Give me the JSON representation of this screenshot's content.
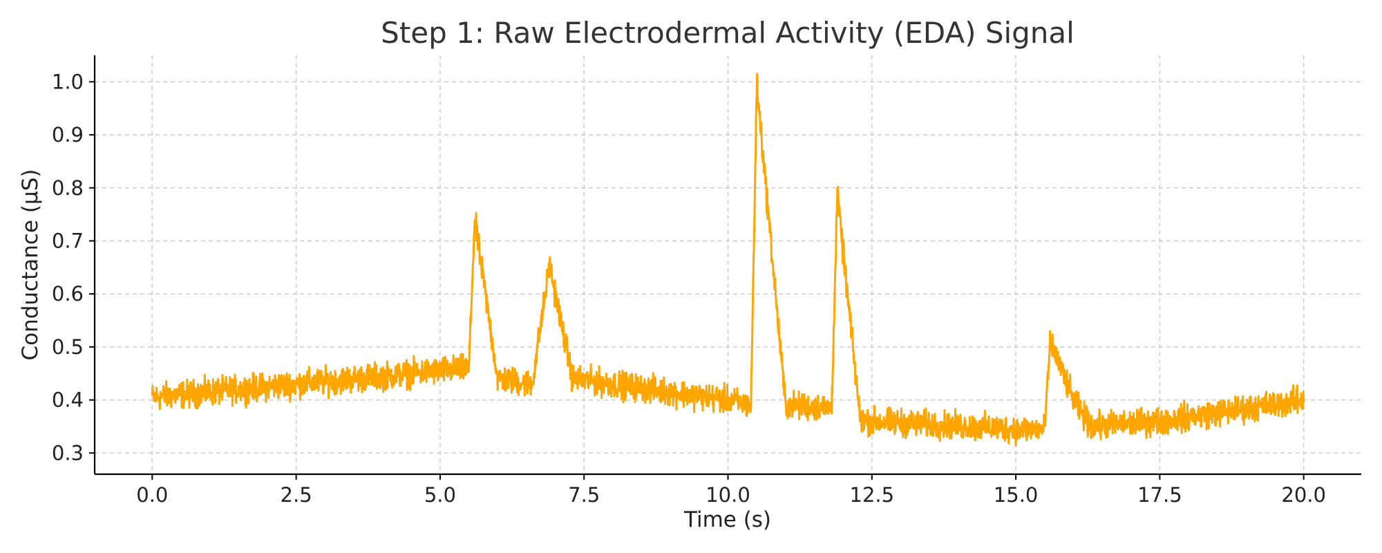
{
  "chart_data": {
    "type": "line",
    "title": "Step 1: Raw Electrodermal Activity (EDA) Signal",
    "xlabel": "Time (s)",
    "ylabel": "Conductance (µS)",
    "xlim": [
      -1.0,
      21.0
    ],
    "ylim": [
      0.26,
      1.05
    ],
    "x_ticks": [
      {
        "value": 0.0,
        "label": "0.0"
      },
      {
        "value": 2.5,
        "label": "2.5"
      },
      {
        "value": 5.0,
        "label": "5.0"
      },
      {
        "value": 7.5,
        "label": "7.5"
      },
      {
        "value": 10.0,
        "label": "10.0"
      },
      {
        "value": 12.5,
        "label": "12.5"
      },
      {
        "value": 15.0,
        "label": "15.0"
      },
      {
        "value": 17.5,
        "label": "17.5"
      },
      {
        "value": 20.0,
        "label": "20.0"
      }
    ],
    "y_ticks": [
      {
        "value": 0.3,
        "label": "0.3"
      },
      {
        "value": 0.4,
        "label": "0.4"
      },
      {
        "value": 0.5,
        "label": "0.5"
      },
      {
        "value": 0.6,
        "label": "0.6"
      },
      {
        "value": 0.7,
        "label": "0.7"
      },
      {
        "value": 0.8,
        "label": "0.8"
      },
      {
        "value": 0.9,
        "label": "0.9"
      },
      {
        "value": 1.0,
        "label": "1.0"
      }
    ],
    "grid": true,
    "legend": "none",
    "series": [
      {
        "color": "#ffa500",
        "noise_amplitude": 0.025,
        "x": [
          0.0,
          2.5,
          5.0,
          5.5,
          5.6,
          6.0,
          6.6,
          6.9,
          7.3,
          8.0,
          10.0,
          10.4,
          10.5,
          11.0,
          11.8,
          11.9,
          12.3,
          12.5,
          15.0,
          15.5,
          15.6,
          16.0,
          16.3,
          17.5,
          20.0
        ],
        "y": [
          0.405,
          0.43,
          0.455,
          0.46,
          0.74,
          0.44,
          0.43,
          0.655,
          0.44,
          0.43,
          0.4,
          0.39,
          0.995,
          0.39,
          0.385,
          0.785,
          0.36,
          0.36,
          0.345,
          0.345,
          0.51,
          0.4,
          0.35,
          0.36,
          0.4
        ]
      }
    ]
  }
}
